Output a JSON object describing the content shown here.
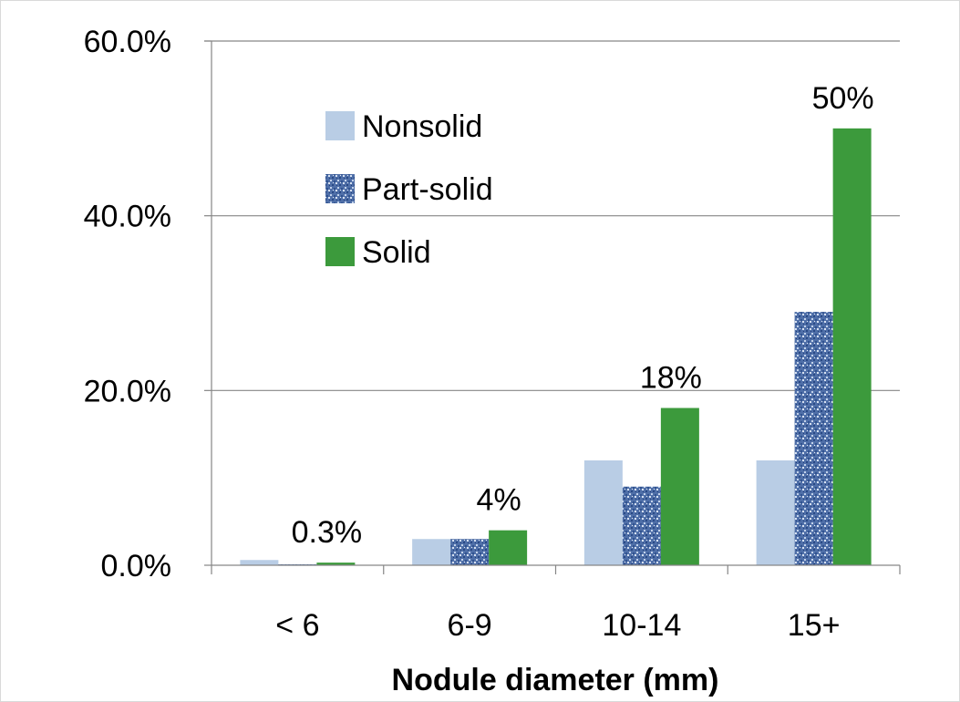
{
  "chart_data": {
    "type": "bar",
    "categories": [
      "< 6",
      "6-9",
      "10-14",
      "15+"
    ],
    "series": [
      {
        "name": "Nonsolid",
        "color": "#b9cde5",
        "pattern": "solid",
        "values": [
          0.6,
          3.0,
          12.0,
          12.0
        ]
      },
      {
        "name": "Part-solid",
        "color": "#4f6fa8",
        "pattern": "speckled-blue",
        "values": [
          0.1,
          3.0,
          9.0,
          29.0
        ]
      },
      {
        "name": "Solid",
        "color": "#3c9a3c",
        "pattern": "solid",
        "values": [
          0.3,
          4.0,
          18.0,
          50.0
        ]
      }
    ],
    "data_labels": [
      {
        "series": "Solid",
        "category": "< 6",
        "text": "0.3%"
      },
      {
        "series": "Solid",
        "category": "6-9",
        "text": "4%"
      },
      {
        "series": "Solid",
        "category": "10-14",
        "text": "18%"
      },
      {
        "series": "Solid",
        "category": "15+",
        "text": "50%"
      }
    ],
    "xlabel": "Nodule diameter (mm)",
    "ylabel": "",
    "ylim": [
      0,
      60
    ],
    "yticks": [
      "0.0%",
      "20.0%",
      "40.0%",
      "60.0%"
    ],
    "ytick_values": [
      0,
      20,
      40,
      60
    ],
    "grid": "horizontal",
    "legend_position": "top-left"
  }
}
